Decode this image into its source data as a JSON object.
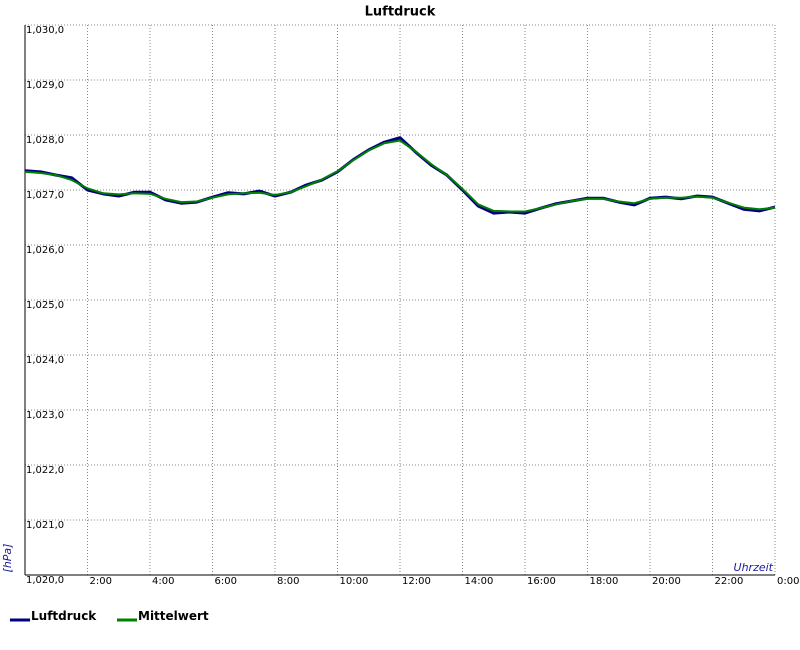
{
  "chart_data": {
    "type": "line",
    "title": "Luftdruck",
    "y_label": "[hPa]",
    "x_label": "Uhrzeit",
    "x": [
      0,
      0.5,
      1,
      1.5,
      2,
      2.5,
      3,
      3.5,
      4,
      4.5,
      5,
      5.5,
      6,
      6.5,
      7,
      7.5,
      8,
      8.5,
      9,
      9.5,
      10,
      10.5,
      11,
      11.5,
      12,
      12.5,
      13,
      13.5,
      14,
      14.5,
      15,
      15.5,
      16,
      16.5,
      17,
      17.5,
      18,
      18.5,
      19,
      19.5,
      20,
      20.5,
      21,
      21.5,
      22,
      22.5,
      23,
      23.5,
      24
    ],
    "series": [
      {
        "name": "Luftdruck",
        "color": "#000080",
        "values": [
          1027.35,
          1027.33,
          1027.27,
          1027.22,
          1027.0,
          1026.93,
          1026.89,
          1026.96,
          1026.96,
          1026.82,
          1026.76,
          1026.78,
          1026.87,
          1026.95,
          1026.93,
          1026.98,
          1026.89,
          1026.96,
          1027.09,
          1027.18,
          1027.33,
          1027.55,
          1027.73,
          1027.87,
          1027.95,
          1027.69,
          1027.45,
          1027.27,
          1027.0,
          1026.71,
          1026.58,
          1026.6,
          1026.58,
          1026.67,
          1026.75,
          1026.8,
          1026.85,
          1026.85,
          1026.78,
          1026.73,
          1026.85,
          1026.87,
          1026.84,
          1026.89,
          1026.87,
          1026.76,
          1026.65,
          1026.62,
          1026.69
        ]
      },
      {
        "name": "Mittelwert",
        "color": "#008000",
        "values": [
          1027.33,
          1027.31,
          1027.27,
          1027.18,
          1027.03,
          1026.94,
          1026.92,
          1026.94,
          1026.93,
          1026.84,
          1026.78,
          1026.79,
          1026.86,
          1026.92,
          1026.94,
          1026.95,
          1026.91,
          1026.96,
          1027.07,
          1027.19,
          1027.34,
          1027.54,
          1027.72,
          1027.85,
          1027.9,
          1027.7,
          1027.47,
          1027.27,
          1027.02,
          1026.74,
          1026.62,
          1026.61,
          1026.61,
          1026.67,
          1026.74,
          1026.8,
          1026.84,
          1026.84,
          1026.79,
          1026.76,
          1026.84,
          1026.86,
          1026.86,
          1026.88,
          1026.86,
          1026.77,
          1026.68,
          1026.65,
          1026.68
        ]
      }
    ],
    "xlim": [
      0,
      24
    ],
    "ylim": [
      1020,
      1030
    ],
    "xticks": [
      {
        "value": 2,
        "label": "2:00"
      },
      {
        "value": 4,
        "label": "4:00"
      },
      {
        "value": 6,
        "label": "6:00"
      },
      {
        "value": 8,
        "label": "8:00"
      },
      {
        "value": 10,
        "label": "10:00"
      },
      {
        "value": 12,
        "label": "12:00"
      },
      {
        "value": 14,
        "label": "14:00"
      },
      {
        "value": 16,
        "label": "16:00"
      },
      {
        "value": 18,
        "label": "18:00"
      },
      {
        "value": 20,
        "label": "20:00"
      },
      {
        "value": 22,
        "label": "22:00"
      },
      {
        "value": 24,
        "label": "0:00"
      }
    ],
    "yticks": [
      {
        "value": 1020,
        "label": "1,020,0"
      },
      {
        "value": 1021,
        "label": "1,021,0"
      },
      {
        "value": 1022,
        "label": "1,022,0"
      },
      {
        "value": 1023,
        "label": "1,023,0"
      },
      {
        "value": 1024,
        "label": "1,024,0"
      },
      {
        "value": 1025,
        "label": "1,025,0"
      },
      {
        "value": 1026,
        "label": "1,026,0"
      },
      {
        "value": 1027,
        "label": "1,027,0"
      },
      {
        "value": 1028,
        "label": "1,028,0"
      },
      {
        "value": 1029,
        "label": "1,029,0"
      },
      {
        "value": 1030,
        "label": "1,030,0"
      }
    ],
    "grid": true
  }
}
